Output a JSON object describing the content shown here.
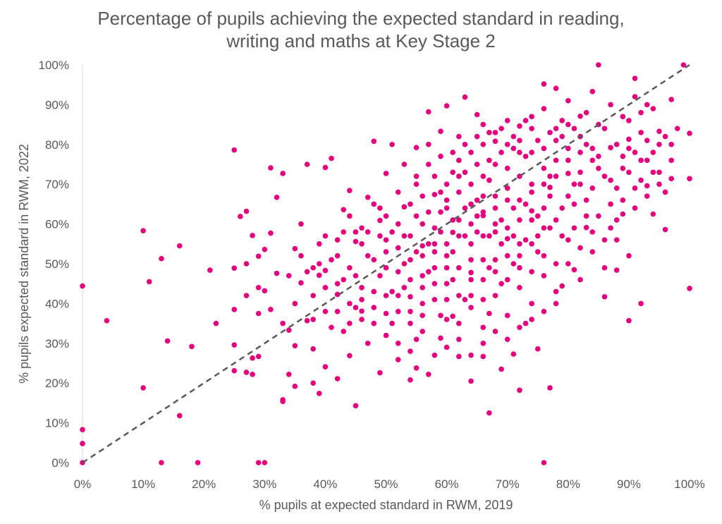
{
  "chart_data": {
    "type": "scatter",
    "title_line1": "Percentage of pupils achieving the expected standard in reading,",
    "title_line2": "writing and maths at Key Stage 2",
    "xlabel": "% pupils at expected standard in RWM, 2019",
    "ylabel": "% pupils expected standard in RWM, 2022",
    "xlim": [
      0,
      100
    ],
    "ylim": [
      0,
      100
    ],
    "x_ticks": [
      "0%",
      "10%",
      "20%",
      "30%",
      "40%",
      "50%",
      "60%",
      "70%",
      "80%",
      "90%",
      "100%"
    ],
    "y_ticks": [
      "0%",
      "10%",
      "20%",
      "30%",
      "40%",
      "50%",
      "60%",
      "70%",
      "80%",
      "90%",
      "100%"
    ],
    "grid": false,
    "colors": {
      "points": "#e6007e",
      "reference_line": "#595959",
      "text": "#595959"
    },
    "reference_line": {
      "style": "dashed",
      "from": [
        0,
        0
      ],
      "to": [
        100,
        100
      ]
    },
    "points": [
      [
        0,
        0
      ],
      [
        0,
        4.8
      ],
      [
        0,
        8.3
      ],
      [
        0,
        44.4
      ],
      [
        4,
        35.7
      ],
      [
        10,
        18.8
      ],
      [
        10,
        58.3
      ],
      [
        11,
        45.5
      ],
      [
        13,
        0
      ],
      [
        13,
        51.3
      ],
      [
        14,
        30.6
      ],
      [
        16,
        11.8
      ],
      [
        16,
        54.5
      ],
      [
        18,
        29.2
      ],
      [
        19,
        0
      ],
      [
        21,
        48.4
      ],
      [
        22,
        35
      ],
      [
        25,
        23.1
      ],
      [
        25,
        29.6
      ],
      [
        25,
        38.5
      ],
      [
        25,
        48.9
      ],
      [
        25,
        78.6
      ],
      [
        26,
        61.9
      ],
      [
        27,
        22.7
      ],
      [
        27,
        42
      ],
      [
        27,
        50
      ],
      [
        27,
        63.2
      ],
      [
        28,
        22.2
      ],
      [
        28,
        26.3
      ],
      [
        28,
        57.1
      ],
      [
        29,
        0
      ],
      [
        30,
        0
      ],
      [
        29,
        26.7
      ],
      [
        29,
        37.5
      ],
      [
        29,
        44
      ],
      [
        29,
        51.9
      ],
      [
        30,
        43.2
      ],
      [
        30,
        53.6
      ],
      [
        31,
        38.5
      ],
      [
        31,
        57.7
      ],
      [
        31,
        74.1
      ],
      [
        32,
        47.6
      ],
      [
        32,
        66.7
      ],
      [
        33,
        15.4
      ],
      [
        33,
        15.8
      ],
      [
        33,
        35
      ],
      [
        33,
        72.7
      ],
      [
        34,
        22.2
      ],
      [
        34,
        33.3
      ],
      [
        35,
        19.2
      ],
      [
        35,
        29.4
      ],
      [
        35,
        53.8
      ],
      [
        36,
        45.2
      ],
      [
        37,
        35.7
      ],
      [
        37,
        75
      ],
      [
        38,
        20
      ],
      [
        38,
        28.6
      ],
      [
        39,
        17.4
      ],
      [
        39,
        47.1
      ],
      [
        40,
        24.1
      ],
      [
        40,
        48.3
      ],
      [
        40,
        74.2
      ],
      [
        41,
        76.5
      ],
      [
        42,
        21.1
      ],
      [
        42,
        42.3
      ],
      [
        43,
        63.6
      ],
      [
        44,
        26.9
      ],
      [
        44,
        68.4
      ],
      [
        45,
        14.3
      ],
      [
        45,
        55.6
      ],
      [
        46,
        38.1
      ],
      [
        47,
        66.7
      ],
      [
        48,
        80.8
      ],
      [
        49,
        22.6
      ],
      [
        49,
        60.9
      ],
      [
        50,
        37.5
      ],
      [
        50,
        72.7
      ],
      [
        51,
        80
      ],
      [
        52,
        25.9
      ],
      [
        53,
        64.3
      ],
      [
        54,
        20.8
      ],
      [
        54,
        41.7
      ],
      [
        55,
        23.8
      ],
      [
        55,
        79.2
      ],
      [
        56,
        54.5
      ],
      [
        57,
        22.2
      ],
      [
        57,
        88.2
      ],
      [
        58,
        67.4
      ],
      [
        59,
        31.3
      ],
      [
        59,
        83.3
      ],
      [
        60,
        89.7
      ],
      [
        61,
        36.8
      ],
      [
        61,
        57.9
      ],
      [
        62,
        26.7
      ],
      [
        63,
        91.9
      ],
      [
        64,
        20.5
      ],
      [
        64,
        47.8
      ],
      [
        65,
        87.5
      ],
      [
        66,
        26.7
      ],
      [
        66,
        62.1
      ],
      [
        67,
        12.5
      ],
      [
        67,
        37.5
      ],
      [
        68,
        80.8
      ],
      [
        69,
        23.5
      ],
      [
        70,
        56.3
      ],
      [
        71,
        27.3
      ],
      [
        72,
        18.2
      ],
      [
        72,
        84.6
      ],
      [
        73,
        35
      ],
      [
        74,
        63.3
      ],
      [
        75,
        28.6
      ],
      [
        76,
        0
      ],
      [
        76,
        95.2
      ],
      [
        77,
        18.8
      ],
      [
        77,
        69.2
      ],
      [
        78,
        94.1
      ],
      [
        79,
        44.4
      ],
      [
        80,
        72.7
      ],
      [
        81,
        48.5
      ],
      [
        82,
        87.1
      ],
      [
        83,
        59.1
      ],
      [
        84,
        93.3
      ],
      [
        85,
        100
      ],
      [
        86,
        41.7
      ],
      [
        87,
        79.2
      ],
      [
        88,
        48.4
      ],
      [
        89,
        62.5
      ],
      [
        90,
        35.7
      ],
      [
        90,
        81.3
      ],
      [
        91,
        96.6
      ],
      [
        92,
        40
      ],
      [
        93,
        69.6
      ],
      [
        94,
        62.5
      ],
      [
        95,
        83.3
      ],
      [
        96,
        58.6
      ],
      [
        97,
        71.4
      ],
      [
        97,
        91.3
      ],
      [
        99,
        100
      ],
      [
        100,
        43.8
      ],
      [
        100,
        71.4
      ],
      [
        100,
        82.8
      ],
      [
        36,
        52
      ],
      [
        37,
        48
      ],
      [
        38,
        42
      ],
      [
        39,
        55
      ],
      [
        40,
        38
      ],
      [
        41,
        51
      ],
      [
        42,
        45
      ],
      [
        43,
        33
      ],
      [
        44,
        49
      ],
      [
        45,
        58
      ],
      [
        46,
        44
      ],
      [
        47,
        52
      ],
      [
        48,
        35
      ],
      [
        49,
        47
      ],
      [
        50,
        56
      ],
      [
        51,
        43
      ],
      [
        52,
        60
      ],
      [
        53,
        50
      ],
      [
        54,
        38
      ],
      [
        55,
        62
      ],
      [
        56,
        47
      ],
      [
        57,
        55
      ],
      [
        58,
        41
      ],
      [
        59,
        63
      ],
      [
        60,
        52
      ],
      [
        61,
        46
      ],
      [
        62,
        68
      ],
      [
        63,
        57
      ],
      [
        64,
        42
      ],
      [
        65,
        66
      ],
      [
        66,
        51
      ],
      [
        67,
        71
      ],
      [
        68,
        60
      ],
      [
        69,
        45
      ],
      [
        70,
        74
      ],
      [
        71,
        64
      ],
      [
        72,
        52
      ],
      [
        73,
        77
      ],
      [
        74,
        68
      ],
      [
        75,
        57
      ],
      [
        76,
        79
      ],
      [
        77,
        72
      ],
      [
        78,
        61
      ],
      [
        79,
        82
      ],
      [
        80,
        76
      ],
      [
        81,
        65
      ],
      [
        82,
        73
      ],
      [
        83,
        80
      ],
      [
        84,
        69
      ],
      [
        85,
        77
      ],
      [
        86,
        84
      ],
      [
        87,
        71
      ],
      [
        88,
        80
      ],
      [
        89,
        74
      ],
      [
        90,
        86
      ],
      [
        91,
        78
      ],
      [
        92,
        83
      ],
      [
        93,
        76
      ],
      [
        94,
        89
      ],
      [
        95,
        80
      ],
      [
        44,
        40
      ],
      [
        46,
        55
      ],
      [
        48,
        43
      ],
      [
        50,
        49
      ],
      [
        52,
        54
      ],
      [
        54,
        46
      ],
      [
        56,
        60
      ],
      [
        58,
        53
      ],
      [
        60,
        45
      ],
      [
        62,
        61
      ],
      [
        64,
        55
      ],
      [
        66,
        63
      ],
      [
        68,
        58
      ],
      [
        70,
        66
      ],
      [
        72,
        61
      ],
      [
        74,
        70
      ],
      [
        76,
        64
      ],
      [
        78,
        72
      ],
      [
        80,
        67
      ],
      [
        82,
        78
      ],
      [
        41,
        34
      ],
      [
        43,
        46
      ],
      [
        45,
        39
      ],
      [
        47,
        30
      ],
      [
        49,
        57
      ],
      [
        51,
        35
      ],
      [
        53,
        44
      ],
      [
        55,
        31
      ],
      [
        57,
        48
      ],
      [
        59,
        37
      ],
      [
        61,
        53
      ],
      [
        63,
        41
      ],
      [
        65,
        58
      ],
      [
        67,
        49
      ],
      [
        69,
        61
      ],
      [
        71,
        50
      ],
      [
        73,
        65
      ],
      [
        75,
        53
      ],
      [
        77,
        67
      ],
      [
        79,
        57
      ],
      [
        81,
        70
      ],
      [
        83,
        62
      ],
      [
        85,
        74
      ],
      [
        87,
        65
      ],
      [
        89,
        77
      ],
      [
        91,
        69
      ],
      [
        93,
        81
      ],
      [
        95,
        73
      ],
      [
        97,
        80
      ],
      [
        92,
        88
      ],
      [
        55,
        70
      ],
      [
        57,
        75
      ],
      [
        59,
        68
      ],
      [
        61,
        78
      ],
      [
        63,
        73
      ],
      [
        65,
        82
      ],
      [
        67,
        76
      ],
      [
        69,
        84
      ],
      [
        71,
        79
      ],
      [
        73,
        86
      ],
      [
        75,
        81
      ],
      [
        77,
        83
      ],
      [
        79,
        86
      ],
      [
        81,
        84
      ],
      [
        83,
        88
      ],
      [
        85,
        85
      ],
      [
        87,
        90
      ],
      [
        89,
        87
      ],
      [
        91,
        92
      ],
      [
        93,
        90
      ],
      [
        52,
        30
      ],
      [
        54,
        28
      ],
      [
        56,
        33
      ],
      [
        58,
        27
      ],
      [
        60,
        36
      ],
      [
        62,
        31
      ],
      [
        64,
        39
      ],
      [
        66,
        34
      ],
      [
        68,
        42
      ],
      [
        70,
        37
      ],
      [
        72,
        44
      ],
      [
        74,
        40
      ],
      [
        76,
        47
      ],
      [
        78,
        43
      ],
      [
        80,
        50
      ],
      [
        82,
        46
      ],
      [
        84,
        53
      ],
      [
        86,
        49
      ],
      [
        88,
        56
      ],
      [
        90,
        52
      ],
      [
        34,
        47
      ],
      [
        35,
        40
      ],
      [
        36,
        60
      ],
      [
        38,
        36
      ],
      [
        39,
        50
      ],
      [
        40,
        57
      ],
      [
        42,
        52
      ],
      [
        43,
        58
      ],
      [
        45,
        47
      ],
      [
        46,
        36
      ],
      [
        60,
        70
      ],
      [
        62,
        76
      ],
      [
        64,
        65
      ],
      [
        66,
        72
      ],
      [
        68,
        67
      ],
      [
        70,
        80
      ],
      [
        72,
        72
      ],
      [
        74,
        78
      ],
      [
        76,
        70
      ],
      [
        78,
        76
      ],
      [
        80,
        79
      ],
      [
        82,
        70
      ],
      [
        84,
        76
      ],
      [
        86,
        72
      ],
      [
        88,
        69
      ],
      [
        90,
        73
      ],
      [
        92,
        71
      ],
      [
        94,
        78
      ],
      [
        96,
        82
      ],
      [
        98,
        84
      ],
      [
        66,
        80
      ],
      [
        68,
        75
      ],
      [
        70,
        69
      ],
      [
        72,
        78
      ],
      [
        74,
        84
      ],
      [
        76,
        74
      ],
      [
        78,
        81
      ],
      [
        80,
        85
      ],
      [
        82,
        82
      ],
      [
        84,
        79
      ],
      [
        58,
        59
      ],
      [
        60,
        64
      ],
      [
        62,
        57
      ],
      [
        64,
        60
      ],
      [
        66,
        57
      ],
      [
        68,
        64
      ],
      [
        70,
        59
      ],
      [
        72,
        66
      ],
      [
        74,
        61
      ],
      [
        76,
        59
      ],
      [
        56,
        40
      ],
      [
        58,
        45
      ],
      [
        60,
        41
      ],
      [
        62,
        49
      ],
      [
        64,
        46
      ],
      [
        66,
        41
      ],
      [
        68,
        51
      ],
      [
        70,
        46
      ],
      [
        72,
        49
      ],
      [
        74,
        55
      ],
      [
        48,
        65
      ],
      [
        50,
        62
      ],
      [
        52,
        68
      ],
      [
        54,
        65
      ],
      [
        56,
        67
      ],
      [
        58,
        72
      ],
      [
        60,
        66
      ],
      [
        62,
        72
      ],
      [
        64,
        70
      ],
      [
        66,
        67
      ],
      [
        47,
        58
      ],
      [
        49,
        64
      ],
      [
        51,
        58
      ],
      [
        53,
        57
      ],
      [
        55,
        53
      ],
      [
        57,
        63
      ],
      [
        59,
        58
      ],
      [
        61,
        61
      ],
      [
        63,
        64
      ],
      [
        65,
        62
      ],
      [
        67,
        57
      ],
      [
        69,
        55
      ],
      [
        71,
        57
      ],
      [
        73,
        56
      ],
      [
        75,
        62
      ],
      [
        77,
        59
      ],
      [
        79,
        64
      ],
      [
        81,
        59
      ],
      [
        83,
        66
      ],
      [
        85,
        62
      ],
      [
        87,
        59
      ],
      [
        89,
        66
      ],
      [
        91,
        64
      ],
      [
        93,
        67
      ],
      [
        95,
        70
      ],
      [
        97,
        76
      ],
      [
        96,
        68
      ],
      [
        94,
        73
      ],
      [
        92,
        76
      ],
      [
        90,
        79
      ],
      [
        50,
        42
      ],
      [
        52,
        38
      ],
      [
        54,
        51
      ],
      [
        56,
        44
      ],
      [
        58,
        49
      ],
      [
        60,
        55
      ],
      [
        62,
        42
      ],
      [
        64,
        51
      ],
      [
        66,
        46
      ],
      [
        68,
        48
      ],
      [
        70,
        52
      ],
      [
        72,
        55
      ],
      [
        74,
        48
      ],
      [
        76,
        52
      ],
      [
        78,
        50
      ],
      [
        80,
        56
      ],
      [
        82,
        54
      ],
      [
        84,
        58
      ],
      [
        86,
        56
      ],
      [
        88,
        61
      ],
      [
        62,
        82
      ],
      [
        64,
        78
      ],
      [
        66,
        85
      ],
      [
        68,
        83
      ],
      [
        70,
        86
      ],
      [
        72,
        81
      ],
      [
        74,
        87
      ],
      [
        76,
        89
      ],
      [
        78,
        84
      ],
      [
        80,
        91
      ],
      [
        53,
        75
      ],
      [
        55,
        72
      ],
      [
        57,
        80
      ],
      [
        59,
        77
      ],
      [
        61,
        73
      ],
      [
        63,
        80
      ],
      [
        65,
        75
      ],
      [
        67,
        83
      ],
      [
        69,
        78
      ],
      [
        71,
        82
      ],
      [
        42,
        56
      ],
      [
        44,
        62
      ],
      [
        46,
        59
      ],
      [
        48,
        51
      ],
      [
        50,
        53
      ],
      [
        52,
        48
      ],
      [
        54,
        57
      ],
      [
        56,
        52
      ],
      [
        58,
        55
      ],
      [
        60,
        49
      ],
      [
        38,
        49
      ],
      [
        40,
        44
      ],
      [
        42,
        38
      ],
      [
        44,
        35
      ],
      [
        46,
        41
      ],
      [
        48,
        39
      ],
      [
        50,
        32
      ],
      [
        52,
        42
      ],
      [
        54,
        35
      ],
      [
        56,
        37
      ],
      [
        60,
        29
      ],
      [
        62,
        35
      ],
      [
        64,
        27
      ],
      [
        66,
        30
      ],
      [
        68,
        33
      ],
      [
        70,
        31
      ],
      [
        72,
        34
      ],
      [
        74,
        36
      ],
      [
        76,
        38
      ],
      [
        78,
        40
      ]
    ]
  }
}
